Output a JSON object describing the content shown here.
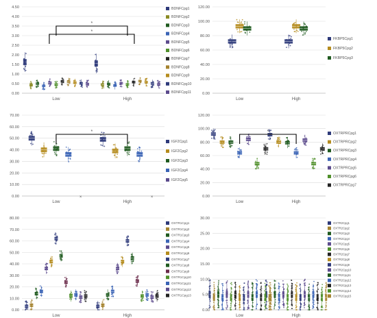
{
  "palette": {
    "navy": "#2E3A7A",
    "olive": "#8A8A22",
    "dgreen": "#1F5A1F",
    "blue": "#3A63B5",
    "purple": "#5B4A8C",
    "lgreen": "#4F8F2A",
    "black": "#222222",
    "tan": "#A5832F",
    "gold": "#B58C1E",
    "brown": "#7A5A1A",
    "maroon": "#6A2A4A",
    "grid": "#D9D9D9",
    "axis": "#BFBFBF",
    "sig": "#000000"
  },
  "chart_data": [
    {
      "type": "box",
      "categories": [
        "Low",
        "High"
      ],
      "ylim": [
        0,
        4.5
      ],
      "yticks": [
        "0.00",
        "0.50",
        "1.00",
        "1.50",
        "2.00",
        "2.50",
        "3.00",
        "3.50",
        "4.00",
        "4.50"
      ],
      "series": [
        {
          "name": "BDNFCpg1",
          "color_key": "navy",
          "values": [
            1.62,
            1.55
          ]
        },
        {
          "name": "BDNFCpg2",
          "color_key": "olive",
          "values": [
            0.42,
            0.45
          ]
        },
        {
          "name": "BDNFCpg3",
          "color_key": "dgreen",
          "values": [
            0.5,
            0.48
          ]
        },
        {
          "name": "BDNFCpg4",
          "color_key": "blue",
          "values": [
            0.38,
            0.4
          ]
        },
        {
          "name": "BDNFCpg5",
          "color_key": "purple",
          "values": [
            0.55,
            0.52
          ]
        },
        {
          "name": "BDNFCpg6",
          "color_key": "lgreen",
          "values": [
            0.45,
            0.46
          ]
        },
        {
          "name": "BDNFCpg7",
          "color_key": "black",
          "values": [
            0.62,
            0.58
          ]
        },
        {
          "name": "BDNFCpg8",
          "color_key": "tan",
          "values": [
            0.6,
            0.63
          ]
        },
        {
          "name": "BDNFCpg9",
          "color_key": "gold",
          "values": [
            0.55,
            0.58
          ]
        },
        {
          "name": "BDNFCpg10",
          "color_key": "navy",
          "values": [
            0.52,
            0.5
          ]
        },
        {
          "name": "BDNFCpg11",
          "color_key": "purple",
          "values": [
            0.48,
            0.46
          ]
        }
      ],
      "significance": [
        "*",
        "*"
      ]
    },
    {
      "type": "box",
      "categories": [
        "Low",
        "High"
      ],
      "ylim": [
        0,
        120
      ],
      "yticks": [
        "0.00",
        "20.00",
        "40.00",
        "60.00",
        "80.00",
        "100.00",
        "120.00"
      ],
      "series": [
        {
          "name": "FKBP5Cpg1",
          "color_key": "navy",
          "values": [
            72,
            72
          ]
        },
        {
          "name": "FKBP5Cpg2",
          "color_key": "gold",
          "values": [
            93,
            93
          ]
        },
        {
          "name": "FKBP5Cpg3",
          "color_key": "dgreen",
          "values": [
            90,
            90
          ]
        }
      ],
      "significance": []
    },
    {
      "type": "box",
      "categories": [
        "Low",
        "High"
      ],
      "ylim": [
        0,
        70
      ],
      "yticks": [
        "0.00",
        "10.00",
        "20.00",
        "30.00",
        "40.00",
        "50.00",
        "60.00",
        "70.00"
      ],
      "series": [
        {
          "name": "IGF2Cpg1",
          "color_key": "navy",
          "values": [
            50,
            49
          ]
        },
        {
          "name": "IGF2Cpg2",
          "color_key": "gold",
          "values": [
            40,
            39
          ]
        },
        {
          "name": "IGF2Cpg3",
          "color_key": "dgreen",
          "values": [
            41,
            41
          ]
        },
        {
          "name": "IGF2Cpg4",
          "color_key": "blue",
          "values": [
            36,
            36
          ]
        },
        {
          "name": "IGF2Cpg5",
          "color_key": "purple",
          "values": [
            0,
            0
          ]
        }
      ],
      "significance": [
        "*"
      ]
    },
    {
      "type": "box",
      "categories": [
        "Low",
        "High"
      ],
      "ylim": [
        0,
        120
      ],
      "yticks": [
        "0.00",
        "20.00",
        "40.00",
        "60.00",
        "80.00",
        "100.00",
        "120.00"
      ],
      "series": [
        {
          "name": "OXTRPRCpg1",
          "color_key": "navy",
          "values": [
            92,
            91
          ]
        },
        {
          "name": "OXTRPRCpg2",
          "color_key": "gold",
          "values": [
            80,
            80
          ]
        },
        {
          "name": "OXTRPRCpg3",
          "color_key": "dgreen",
          "values": [
            80,
            79
          ]
        },
        {
          "name": "OXTRPRCpg4",
          "color_key": "blue",
          "values": [
            64,
            64
          ]
        },
        {
          "name": "OXTRPRCpg5",
          "color_key": "purple",
          "values": [
            84,
            83
          ]
        },
        {
          "name": "OXTRPRCpg6",
          "color_key": "lgreen",
          "values": [
            48,
            48
          ]
        },
        {
          "name": "OXTRPRCpg7",
          "color_key": "black",
          "values": [
            70,
            70
          ]
        }
      ],
      "significance": [
        "*"
      ]
    },
    {
      "type": "box",
      "categories": [
        "Low",
        "High"
      ],
      "ylim": [
        0,
        80
      ],
      "yticks": [
        "0.00",
        "10.00",
        "20.00",
        "30.00",
        "40.00",
        "50.00",
        "60.00",
        "70.00",
        "80.00"
      ],
      "series": [
        {
          "name": "OXTR1Cpg1",
          "color_key": "navy",
          "values": [
            3,
            3
          ]
        },
        {
          "name": "OXTR1Cpg2",
          "color_key": "tan",
          "values": [
            4,
            4
          ]
        },
        {
          "name": "OXTR1Cpg3",
          "color_key": "dgreen",
          "values": [
            14,
            13
          ]
        },
        {
          "name": "OXTR1Cpg4",
          "color_key": "blue",
          "values": [
            16,
            16
          ]
        },
        {
          "name": "OXTR1Cpg5",
          "color_key": "purple",
          "values": [
            36,
            36
          ]
        },
        {
          "name": "OXTR1Cpg6",
          "color_key": "gold",
          "values": [
            42,
            42
          ]
        },
        {
          "name": "OXTR1Cpg7",
          "color_key": "navy",
          "values": [
            62,
            60
          ]
        },
        {
          "name": "OXTR1Cpg8",
          "color_key": "dgreen",
          "values": [
            47,
            45
          ]
        },
        {
          "name": "OXTR1Cpg9",
          "color_key": "maroon",
          "values": [
            24,
            25
          ]
        },
        {
          "name": "OXTR1Cpg10",
          "color_key": "lgreen",
          "values": [
            12,
            12
          ]
        },
        {
          "name": "OXTR1Cpg11",
          "color_key": "blue",
          "values": [
            13,
            13
          ]
        },
        {
          "name": "OXTR1Cpg12",
          "color_key": "purple",
          "values": [
            11,
            11
          ]
        },
        {
          "name": "OXTR1Cpg13",
          "color_key": "black",
          "values": [
            12,
            12
          ]
        }
      ],
      "significance": []
    },
    {
      "type": "box",
      "categories": [
        "Low",
        "High"
      ],
      "ylim": [
        0,
        30
      ],
      "yticks": [
        "0.00",
        "5.00",
        "10.00",
        "15.00",
        "20.00",
        "25.00",
        "30.00"
      ],
      "series": [
        {
          "name": "OXTR2Cpg1",
          "color_key": "navy",
          "values": [
            5,
            5
          ]
        },
        {
          "name": "OXTR2Cpg2",
          "color_key": "tan",
          "values": [
            4,
            4
          ]
        },
        {
          "name": "OXTR2Cpg3",
          "color_key": "dgreen",
          "values": [
            5,
            5
          ]
        },
        {
          "name": "OXTR2Cpg4",
          "color_key": "blue",
          "values": [
            4,
            4
          ]
        },
        {
          "name": "OXTR2Cpg5",
          "color_key": "purple",
          "values": [
            5,
            5
          ]
        },
        {
          "name": "OXTR2Cpg6",
          "color_key": "lgreen",
          "values": [
            4,
            4
          ]
        },
        {
          "name": "OXTR2Cpg7",
          "color_key": "black",
          "values": [
            5,
            5
          ]
        },
        {
          "name": "OXTR2Cpg8",
          "color_key": "gold",
          "values": [
            4,
            4
          ]
        },
        {
          "name": "OXTR2Cpg9",
          "color_key": "navy",
          "values": [
            4,
            4
          ]
        },
        {
          "name": "OXTR2Cpg10",
          "color_key": "purple",
          "values": [
            5,
            5
          ]
        },
        {
          "name": "OXTR2Cpg11",
          "color_key": "dgreen",
          "values": [
            4,
            4
          ]
        },
        {
          "name": "OXTR2Cpg12",
          "color_key": "blue",
          "values": [
            5,
            5
          ]
        },
        {
          "name": "OXTR2Cpg13",
          "color_key": "black",
          "values": [
            4,
            4
          ]
        },
        {
          "name": "OXTR2Cpg14",
          "color_key": "lgreen",
          "values": [
            4,
            4
          ]
        },
        {
          "name": "OXTR2Cpg15",
          "color_key": "tan",
          "values": [
            4,
            4
          ]
        }
      ],
      "significance": []
    }
  ]
}
